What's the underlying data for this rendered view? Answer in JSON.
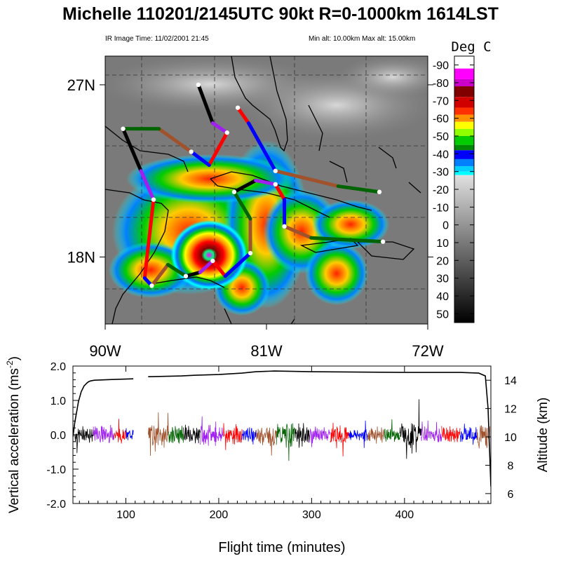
{
  "header": {
    "title": "Michelle 110201/2145UTC 90kt  R=0-1000km 1614LST",
    "ir_time": "IR Image Time: 11/02/2001 21:45",
    "alt_range": "Min alt: 10.00km  Max alt: 15.00km"
  },
  "colors": {
    "track_segments": [
      "#000000",
      "#a020f0",
      "#ff0000",
      "#0000ff",
      "#a0522d",
      "#006400"
    ],
    "accent_green": "#00c000",
    "accent_red": "#ff0000"
  },
  "chart_data": [
    {
      "type": "map",
      "name": "IR satellite image with aircraft track",
      "lat_labels": [
        "27N",
        "18N"
      ],
      "lon_labels": [
        "90W",
        "81W",
        "72W"
      ],
      "lat_ticks": [
        27,
        18
      ],
      "lon_ticks": [
        -90,
        -81,
        -72
      ],
      "lat_range": [
        14.5,
        28.5
      ],
      "lon_range": [
        -90,
        -72
      ],
      "storm_center": {
        "lat": 18.1,
        "lon": -84.2
      },
      "colorbar": {
        "title": "Deg C",
        "labels": [
          "-90",
          "-80",
          "-70",
          "-60",
          "-50",
          "-40",
          "-30",
          "-20",
          "-10",
          "0",
          "10",
          "20",
          "30",
          "40",
          "50"
        ],
        "values": [
          -90,
          -80,
          -70,
          -60,
          -50,
          -40,
          -30,
          -20,
          -10,
          0,
          10,
          20,
          30,
          40,
          50
        ],
        "range": [
          -95,
          55
        ],
        "colors": [
          {
            "t": -95,
            "c": "#ffffff"
          },
          {
            "t": -88,
            "c": "#ff00ff"
          },
          {
            "t": -82,
            "c": "#cc00cc"
          },
          {
            "t": -78,
            "c": "#800000"
          },
          {
            "t": -72,
            "c": "#d00000"
          },
          {
            "t": -66,
            "c": "#ff3000"
          },
          {
            "t": -62,
            "c": "#ff9000"
          },
          {
            "t": -58,
            "c": "#ffff00"
          },
          {
            "t": -54,
            "c": "#90ff00"
          },
          {
            "t": -50,
            "c": "#00cc00"
          },
          {
            "t": -45,
            "c": "#008800"
          },
          {
            "t": -42,
            "c": "#0000ff"
          },
          {
            "t": -37,
            "c": "#0080ff"
          },
          {
            "t": -33,
            "c": "#00d0ff"
          },
          {
            "t": -30,
            "c": "#00ffff"
          },
          {
            "t": -28,
            "c": "#e0e0e0"
          },
          {
            "t": 55,
            "c": "#000000"
          }
        ]
      },
      "track_points": [
        [
          -84.8,
          27.0
        ],
        [
          -84.0,
          25.0
        ],
        [
          -83.2,
          24.5
        ],
        [
          -84.2,
          22.8
        ],
        [
          -85.2,
          23.5
        ],
        [
          -87.0,
          24.7
        ],
        [
          -89.0,
          24.7
        ],
        [
          -88.0,
          22.5
        ],
        [
          -87.3,
          21.0
        ],
        [
          -87.8,
          16.9
        ],
        [
          -87.4,
          16.5
        ],
        [
          -86.5,
          17.6
        ],
        [
          -85.5,
          17.0
        ],
        [
          -84.7,
          17.2
        ],
        [
          -84.0,
          17.8
        ],
        [
          -83.3,
          17.0
        ],
        [
          -81.9,
          18.2
        ],
        [
          -81.9,
          20.0
        ],
        [
          -82.8,
          21.4
        ],
        [
          -81.6,
          22.0
        ],
        [
          -80.5,
          21.8
        ],
        [
          -80.0,
          21.0
        ],
        [
          -80.0,
          19.6
        ],
        [
          -78.5,
          19.0
        ],
        [
          -74.5,
          18.8
        ]
      ],
      "track_points_b": [
        [
          -82.6,
          25.8
        ],
        [
          -82.0,
          25.0
        ],
        [
          -80.5,
          22.5
        ],
        [
          -77.0,
          21.7
        ],
        [
          -74.7,
          21.4
        ]
      ]
    },
    {
      "type": "line",
      "name": "Vertical acceleration and altitude",
      "xlabel": "Flight time (minutes)",
      "ylabel": "Vertical acceleration (ms",
      "ylabel_sup": "-2",
      "ylabel_end": ")",
      "y2label": "Altitude (km)",
      "xlim": [
        43,
        493
      ],
      "ylim": [
        -2.0,
        2.0
      ],
      "y2lim": [
        5.3,
        15.0
      ],
      "xticks": [
        "100",
        "200",
        "300",
        "400"
      ],
      "xtick_values": [
        100,
        200,
        300,
        400
      ],
      "yticks": [
        "2.0",
        "1.0",
        "0.0",
        "-1.0",
        "-2.0"
      ],
      "ytick_values": [
        2.0,
        1.0,
        0.0,
        -1.0,
        -2.0
      ],
      "y2ticks": [
        "14",
        "12",
        "10",
        "8",
        "6"
      ],
      "y2tick_values": [
        14,
        12,
        10,
        8,
        6
      ],
      "altitude_series": {
        "name": "Altitude",
        "x": [
          43,
          45,
          49,
          52,
          55,
          58,
          60,
          62,
          66,
          85,
          108,
          120,
          124,
          160,
          175,
          200,
          225,
          240,
          260,
          300,
          400,
          460,
          480,
          487,
          490,
          493
        ],
        "y": [
          10.0,
          11.0,
          12.5,
          13.2,
          13.6,
          13.8,
          13.9,
          13.95,
          14.0,
          14.05,
          14.1,
          null,
          14.25,
          14.3,
          14.35,
          14.4,
          14.5,
          14.6,
          14.65,
          14.6,
          14.55,
          14.55,
          14.5,
          14.3,
          12.0,
          6.5
        ]
      },
      "acceleration_segments": [
        {
          "x0": 45,
          "x1": 65,
          "amp": 0.28,
          "color": "#000000"
        },
        {
          "x0": 65,
          "x1": 87,
          "amp": 0.32,
          "color": "#a020f0"
        },
        {
          "x0": 87,
          "x1": 100,
          "amp": 0.26,
          "color": "#ff0000"
        },
        {
          "x0": 100,
          "x1": 108,
          "amp": 0.22,
          "color": "#0000ff"
        },
        {
          "x0": 124,
          "x1": 146,
          "amp": 0.45,
          "color": "#a0522d"
        },
        {
          "x0": 146,
          "x1": 162,
          "amp": 0.32,
          "color": "#006400"
        },
        {
          "x0": 162,
          "x1": 180,
          "amp": 0.3,
          "color": "#000000"
        },
        {
          "x0": 180,
          "x1": 205,
          "amp": 0.34,
          "color": "#a020f0"
        },
        {
          "x0": 205,
          "x1": 225,
          "amp": 0.36,
          "color": "#ff0000"
        },
        {
          "x0": 225,
          "x1": 240,
          "amp": 0.28,
          "color": "#0000ff"
        },
        {
          "x0": 240,
          "x1": 262,
          "amp": 0.38,
          "color": "#a0522d"
        },
        {
          "x0": 262,
          "x1": 282,
          "amp": 0.4,
          "color": "#006400"
        },
        {
          "x0": 282,
          "x1": 298,
          "amp": 0.42,
          "color": "#000000"
        },
        {
          "x0": 298,
          "x1": 320,
          "amp": 0.26,
          "color": "#a020f0"
        },
        {
          "x0": 320,
          "x1": 340,
          "amp": 0.32,
          "color": "#ff0000"
        },
        {
          "x0": 340,
          "x1": 360,
          "amp": 0.22,
          "color": "#0000ff"
        },
        {
          "x0": 360,
          "x1": 378,
          "amp": 0.26,
          "color": "#a0522d"
        },
        {
          "x0": 378,
          "x1": 395,
          "amp": 0.26,
          "color": "#006400"
        },
        {
          "x0": 395,
          "x1": 418,
          "amp": 0.5,
          "color": "#000000"
        },
        {
          "x0": 418,
          "x1": 440,
          "amp": 0.26,
          "color": "#a020f0"
        },
        {
          "x0": 440,
          "x1": 460,
          "amp": 0.26,
          "color": "#ff0000"
        },
        {
          "x0": 460,
          "x1": 478,
          "amp": 0.3,
          "color": "#0000ff"
        },
        {
          "x0": 478,
          "x1": 492,
          "amp": 0.45,
          "color": "#a0522d"
        }
      ]
    }
  ]
}
